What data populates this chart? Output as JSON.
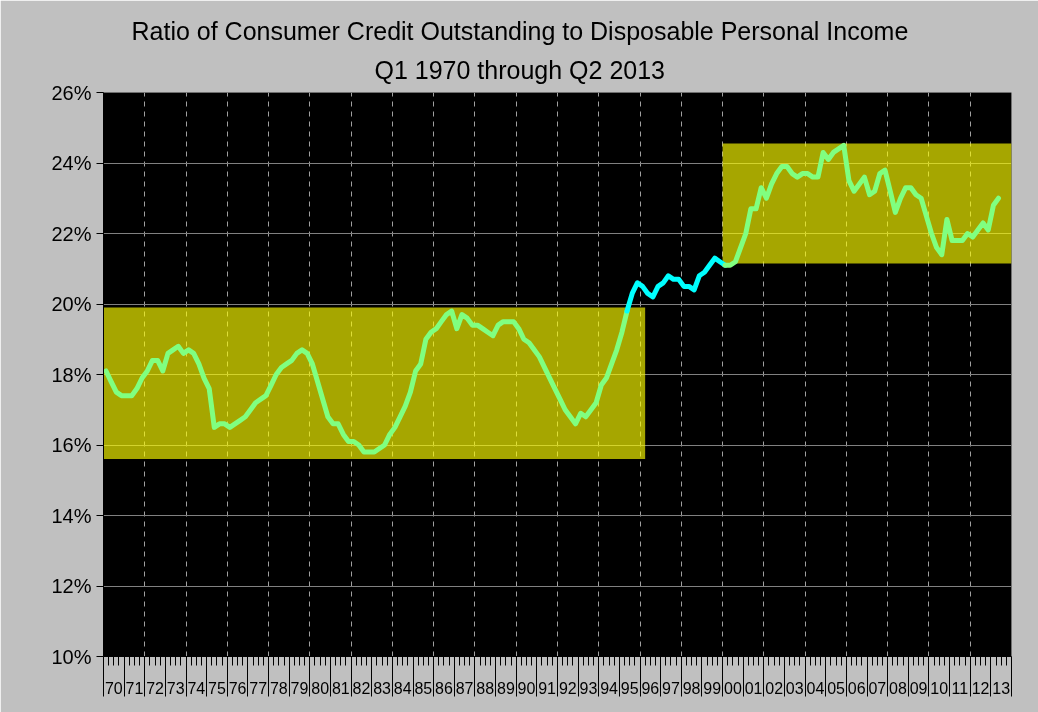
{
  "chart_data": {
    "type": "line",
    "title": "Ratio of Consumer Credit Outstanding to Disposable Personal Income",
    "subtitle": "Q1 1970 through Q2 2013",
    "series": [
      {
        "color": "#ffff00",
        "x": [
          "1970",
          "1996-04"
        ],
        "values": [
          null,
          null
        ],
        "lower": [
          15.6,
          15.6
        ],
        "upper": [
          19.9,
          19.9
        ]
      },
      {
        "color": "#ffff00",
        "x": [
          "2000",
          "2014"
        ],
        "values": [
          null,
          null
        ],
        "lower": [
          21.15,
          21.15
        ],
        "upper": [
          24.55,
          24.55
        ]
      },
      {
        "color": "#80ff80",
        "x": [
          "1970-02-15",
          "1970-05-16",
          "1970-08-16",
          "1970-11-15",
          "1971-02-15",
          "1971-05-16",
          "1971-08-16",
          "1971-11-15",
          "1972-02-15",
          "1972-05-16",
          "1972-08-16",
          "1972-11-15",
          "1973-02-15",
          "1973-05-16",
          "1973-08-16",
          "1973-11-15",
          "1974-02-15",
          "1974-05-16",
          "1974-08-16",
          "1974-11-15",
          "1975-02-15",
          "1975-05-16",
          "1975-08-16",
          "1975-11-15",
          "1976-02-15",
          "1976-05-16",
          "1976-08-16",
          "1976-11-15",
          "1977-02-15",
          "1977-05-16",
          "1977-08-16",
          "1977-11-15",
          "1978-02-15",
          "1978-05-16",
          "1978-08-16",
          "1978-11-15",
          "1979-02-15",
          "1979-05-16",
          "1979-08-16",
          "1979-11-15",
          "1980-02-15",
          "1980-05-16",
          "1980-08-16",
          "1980-11-15",
          "1981-02-15",
          "1981-05-16",
          "1981-08-16",
          "1981-11-15",
          "1982-02-15",
          "1982-05-16",
          "1982-08-16",
          "1982-11-15",
          "1983-02-15",
          "1983-05-16",
          "1983-08-16",
          "1983-11-15",
          "1984-02-15",
          "1984-05-16",
          "1984-08-16",
          "1984-11-15",
          "1985-02-15",
          "1985-05-16",
          "1985-08-16",
          "1985-11-15",
          "1986-02-15",
          "1986-05-16",
          "1986-08-16",
          "1986-11-15",
          "1987-02-15",
          "1987-05-16",
          "1987-08-16",
          "1987-11-15",
          "1988-02-15",
          "1988-05-16",
          "1988-08-16",
          "1988-11-15",
          "1989-02-15",
          "1989-05-16",
          "1989-08-16",
          "1989-11-15",
          "1990-02-15",
          "1990-05-16",
          "1990-08-16",
          "1990-11-15",
          "1991-02-15",
          "1991-05-16",
          "1991-08-16",
          "1991-11-15",
          "1992-02-15",
          "1992-05-16",
          "1992-08-16",
          "1992-11-15",
          "1993-02-15",
          "1993-05-16",
          "1993-08-16",
          "1993-11-15",
          "1994-02-15",
          "1994-05-16",
          "1994-08-16",
          "1994-11-15",
          "1995-02-15",
          "1995-05-16"
        ],
        "values": [
          18.1,
          17.8,
          17.5,
          17.4,
          17.4,
          17.4,
          17.6,
          17.9,
          18.1,
          18.4,
          18.4,
          18.1,
          18.6,
          18.7,
          18.8,
          18.6,
          18.7,
          18.6,
          18.3,
          17.9,
          17.6,
          16.5,
          16.6,
          16.6,
          16.5,
          16.6,
          16.7,
          16.8,
          17.0,
          17.2,
          17.3,
          17.4,
          17.7,
          18.0,
          18.2,
          18.3,
          18.4,
          18.6,
          18.7,
          18.6,
          18.3,
          17.8,
          17.3,
          16.8,
          16.6,
          16.6,
          16.3,
          16.1,
          16.1,
          16.0,
          15.8,
          15.8,
          15.8,
          15.9,
          16.0,
          16.3,
          16.5,
          16.8,
          17.1,
          17.5,
          18.1,
          18.3,
          19.0,
          19.2,
          19.3,
          19.5,
          19.7,
          19.8,
          19.3,
          19.7,
          19.6,
          19.4,
          19.4,
          19.3,
          19.2,
          19.1,
          19.4,
          19.5,
          19.5,
          19.5,
          19.3,
          19.0,
          18.9,
          18.7,
          18.5,
          18.2,
          17.9,
          17.6,
          17.3,
          17.0,
          16.8,
          16.6,
          16.9,
          16.8,
          17.0,
          17.2,
          17.7,
          17.9,
          18.3,
          18.7,
          19.2,
          19.8
        ]
      },
      {
        "color": "#00ffff",
        "x": [
          "1995-05-16",
          "1995-08-16",
          "1995-11-15",
          "1996-02-15",
          "1996-05-16",
          "1996-08-16",
          "1996-11-15",
          "1997-02-15",
          "1997-05-16",
          "1997-08-16",
          "1997-11-15",
          "1998-02-15",
          "1998-05-16",
          "1998-08-16",
          "1998-11-15",
          "1999-02-15",
          "1999-05-16",
          "1999-08-16",
          "1999-11-15",
          "2000-02-15"
        ],
        "values": [
          19.8,
          20.3,
          20.6,
          20.5,
          20.3,
          20.2,
          20.5,
          20.6,
          20.8,
          20.7,
          20.7,
          20.5,
          20.5,
          20.4,
          20.8,
          20.9,
          21.1,
          21.3,
          21.2,
          21.1
        ]
      },
      {
        "color": "#80ff80",
        "x": [
          "2000-02-15",
          "2000-05-16",
          "2000-08-16",
          "2000-11-15",
          "2001-02-15",
          "2001-05-16",
          "2001-08-16",
          "2001-11-15",
          "2002-02-15",
          "2002-05-16",
          "2002-08-16",
          "2002-11-15",
          "2003-02-15",
          "2003-05-16",
          "2003-08-16",
          "2003-11-15",
          "2004-02-15",
          "2004-05-16",
          "2004-08-16",
          "2004-11-15",
          "2005-02-15",
          "2005-05-16",
          "2005-08-16",
          "2005-11-15",
          "2006-02-15",
          "2006-05-16",
          "2006-08-16",
          "2006-11-15",
          "2007-02-15",
          "2007-05-16",
          "2007-08-16",
          "2007-11-15",
          "2008-02-15",
          "2008-05-16",
          "2008-08-16",
          "2008-11-15",
          "2009-02-15",
          "2009-05-16",
          "2009-08-16",
          "2009-11-15",
          "2010-02-15",
          "2010-05-16",
          "2010-08-16",
          "2010-11-15",
          "2011-02-15",
          "2011-05-16",
          "2011-08-16",
          "2011-11-15",
          "2012-02-15",
          "2012-05-16",
          "2012-08-16",
          "2012-11-15",
          "2013-02-15",
          "2013-05-16"
        ],
        "values": [
          21.1,
          21.1,
          21.2,
          21.6,
          22.0,
          22.7,
          22.7,
          23.3,
          23.0,
          23.4,
          23.7,
          23.9,
          23.9,
          23.7,
          23.6,
          23.7,
          23.7,
          23.6,
          23.6,
          24.3,
          24.1,
          24.3,
          24.4,
          24.5,
          23.5,
          23.2,
          23.4,
          23.6,
          23.1,
          23.2,
          23.7,
          23.8,
          23.2,
          22.6,
          23.0,
          23.3,
          23.3,
          23.1,
          23.0,
          22.5,
          22.0,
          21.6,
          21.4,
          22.4,
          21.8,
          21.8,
          21.8,
          22.0,
          21.9,
          22.1,
          22.3,
          22.1,
          22.8,
          23.0
        ]
      }
    ],
    "xlim": [
      "1970",
      "2014"
    ],
    "xticks": [
      {
        "value": "1970-07-02",
        "label": "70"
      },
      {
        "value": "1971-07-02",
        "label": "71"
      },
      {
        "value": "1972-07-02",
        "label": "72"
      },
      {
        "value": "1973-07-02",
        "label": "73"
      },
      {
        "value": "1974-07-02",
        "label": "74"
      },
      {
        "value": "1975-07-02",
        "label": "75"
      },
      {
        "value": "1976-07-02",
        "label": "76"
      },
      {
        "value": "1977-07-02",
        "label": "77"
      },
      {
        "value": "1978-07-02",
        "label": "78"
      },
      {
        "value": "1979-07-02",
        "label": "79"
      },
      {
        "value": "1980-07-02",
        "label": "80"
      },
      {
        "value": "1981-07-02",
        "label": "81"
      },
      {
        "value": "1982-07-02",
        "label": "82"
      },
      {
        "value": "1983-07-02",
        "label": "83"
      },
      {
        "value": "1984-07-02",
        "label": "84"
      },
      {
        "value": "1985-07-02",
        "label": "85"
      },
      {
        "value": "1986-07-02",
        "label": "86"
      },
      {
        "value": "1987-07-02",
        "label": "87"
      },
      {
        "value": "1988-07-02",
        "label": "88"
      },
      {
        "value": "1989-07-02",
        "label": "89"
      },
      {
        "value": "1990-07-02",
        "label": "90"
      },
      {
        "value": "1991-07-02",
        "label": "91"
      },
      {
        "value": "1992-07-02",
        "label": "92"
      },
      {
        "value": "1993-07-02",
        "label": "93"
      },
      {
        "value": "1994-07-02",
        "label": "94"
      },
      {
        "value": "1995-07-02",
        "label": "95"
      },
      {
        "value": "1996-07-02",
        "label": "96"
      },
      {
        "value": "1997-07-02",
        "label": "97"
      },
      {
        "value": "1998-07-02",
        "label": "98"
      },
      {
        "value": "1999-07-02",
        "label": "99"
      },
      {
        "value": "2000-07-02",
        "label": "00"
      },
      {
        "value": "2001-07-02",
        "label": "01"
      },
      {
        "value": "2002-07-02",
        "label": "02"
      },
      {
        "value": "2003-07-02",
        "label": "03"
      },
      {
        "value": "2004-07-02",
        "label": "04"
      },
      {
        "value": "2005-07-02",
        "label": "05"
      },
      {
        "value": "2006-07-02",
        "label": "06"
      },
      {
        "value": "2007-07-02",
        "label": "07"
      },
      {
        "value": "2008-07-02",
        "label": "08"
      },
      {
        "value": "2009-07-02",
        "label": "09"
      },
      {
        "value": "2010-07-02",
        "label": "10"
      },
      {
        "value": "2011-07-02",
        "label": "11"
      },
      {
        "value": "2012-07-02",
        "label": "12"
      },
      {
        "value": "2013-07-02",
        "label": "13"
      }
    ],
    "ylim": [
      10,
      26
    ],
    "yticks": [
      {
        "value": 10,
        "label": "10%"
      },
      {
        "value": 12,
        "label": "12%"
      },
      {
        "value": 14,
        "label": "14%"
      },
      {
        "value": 16,
        "label": "16%"
      },
      {
        "value": 18,
        "label": "18%"
      },
      {
        "value": 20,
        "label": "20%"
      },
      {
        "value": 22,
        "label": "22%"
      },
      {
        "value": 24,
        "label": "24%"
      },
      {
        "value": 26,
        "label": "26%"
      }
    ],
    "grid": true
  }
}
